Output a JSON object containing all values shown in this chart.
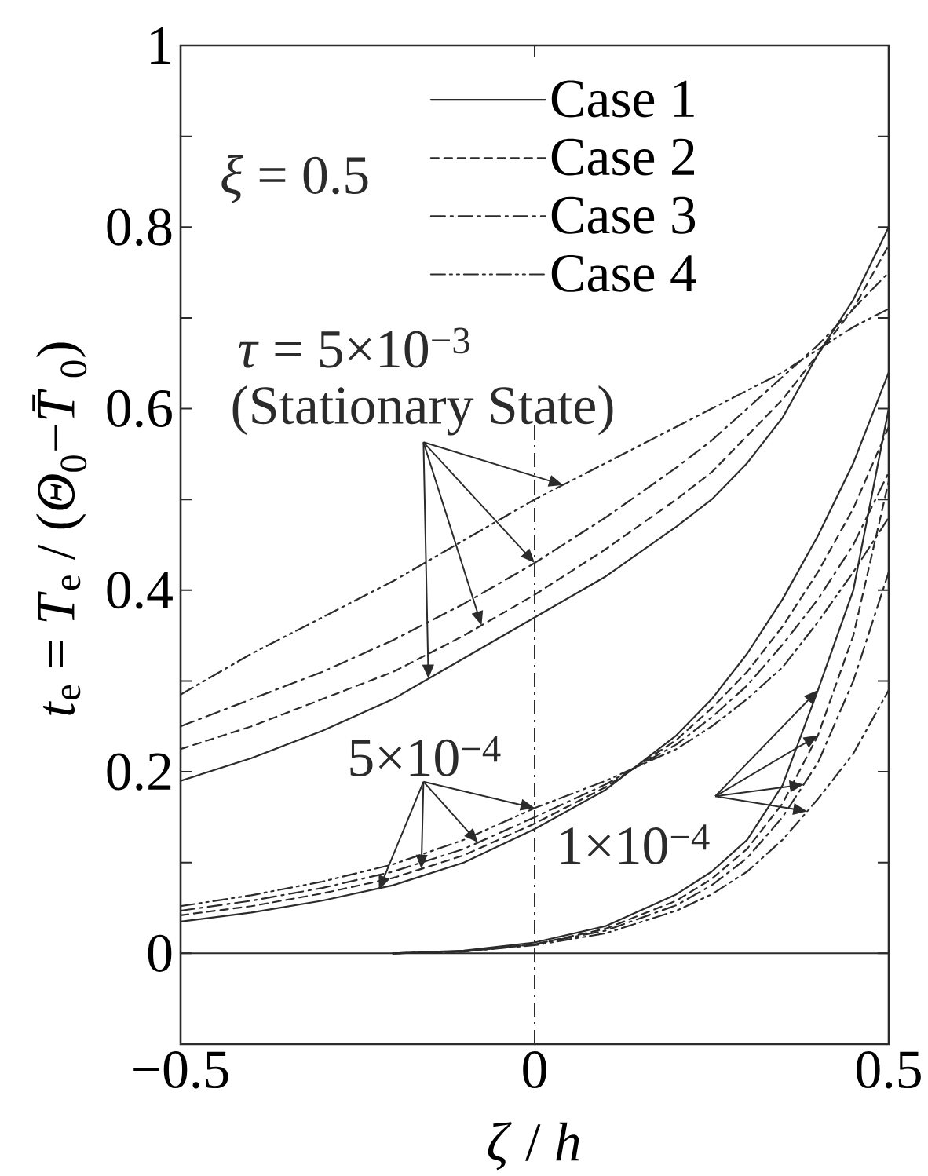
{
  "chart_data": {
    "type": "line",
    "xlabel": "*ζ* / *h*",
    "ylabel": "*t*$_{e}$ = *T*$_{e}$ / (*Θ*$_{0}$−*T̄*$_{0}$)",
    "x": [
      -0.5,
      -0.4,
      -0.3,
      -0.2,
      -0.1,
      0,
      0.1,
      0.2,
      0.25,
      0.3,
      0.35,
      0.4,
      0.45,
      0.5
    ],
    "series": [
      {
        "name": "Case 1",
        "color": "#2b2b2b",
        "line_style": "solid",
        "values": [
          0.19,
          0.215,
          0.245,
          0.28,
          0.325,
          0.37,
          0.415,
          0.47,
          0.5,
          0.54,
          0.59,
          0.66,
          0.72,
          0.8
        ]
      },
      {
        "name": "Case 2",
        "color": "#2b2b2b",
        "line_style": "dashed",
        "values": [
          0.225,
          0.25,
          0.28,
          0.31,
          0.35,
          0.395,
          0.445,
          0.5,
          0.53,
          0.57,
          0.61,
          0.66,
          0.71,
          0.78
        ]
      },
      {
        "name": "Case 3",
        "color": "#2b2b2b",
        "line_style": "dashdot",
        "values": [
          0.25,
          0.28,
          0.31,
          0.345,
          0.385,
          0.43,
          0.48,
          0.535,
          0.565,
          0.6,
          0.635,
          0.67,
          0.71,
          0.75
        ]
      },
      {
        "name": "Case 4",
        "color": "#2b2b2b",
        "line_style": "dashdotdot",
        "values": [
          0.285,
          0.33,
          0.37,
          0.41,
          0.455,
          0.5,
          0.54,
          0.58,
          0.6,
          0.62,
          0.64,
          0.665,
          0.69,
          0.71
        ]
      },
      {
        "color": "#2b2b2b",
        "line_style": "solid",
        "values": [
          0.035,
          0.045,
          0.058,
          0.075,
          0.1,
          0.137,
          0.18,
          0.24,
          0.28,
          0.33,
          0.39,
          0.46,
          0.54,
          0.64
        ]
      },
      {
        "color": "#2b2b2b",
        "line_style": "dashed",
        "values": [
          0.042,
          0.052,
          0.066,
          0.083,
          0.108,
          0.143,
          0.183,
          0.235,
          0.27,
          0.31,
          0.36,
          0.42,
          0.49,
          0.58
        ]
      },
      {
        "color": "#2b2b2b",
        "line_style": "dashdot",
        "values": [
          0.047,
          0.058,
          0.072,
          0.09,
          0.115,
          0.15,
          0.186,
          0.23,
          0.26,
          0.295,
          0.34,
          0.39,
          0.45,
          0.53
        ]
      },
      {
        "color": "#2b2b2b",
        "line_style": "dashdotdot",
        "values": [
          0.052,
          0.064,
          0.079,
          0.098,
          0.125,
          0.16,
          0.19,
          0.225,
          0.25,
          0.28,
          0.315,
          0.365,
          0.42,
          0.48
        ]
      },
      {
        "color": "#2b2b2b",
        "line_style": "solid",
        "x": [
          -0.2,
          -0.1,
          0,
          0.1,
          0.2,
          0.25,
          0.3,
          0.35,
          0.4,
          0.45,
          0.5
        ],
        "values": [
          0,
          0.003,
          0.012,
          0.03,
          0.065,
          0.09,
          0.125,
          0.185,
          0.29,
          0.4,
          0.6
        ]
      },
      {
        "color": "#2b2b2b",
        "line_style": "dashed",
        "x": [
          -0.2,
          -0.1,
          0,
          0.1,
          0.2,
          0.25,
          0.3,
          0.35,
          0.4,
          0.45,
          0.5
        ],
        "values": [
          0,
          0.002,
          0.01,
          0.027,
          0.058,
          0.082,
          0.115,
          0.165,
          0.24,
          0.35,
          0.52
        ]
      },
      {
        "color": "#2b2b2b",
        "line_style": "dashdot",
        "x": [
          -0.2,
          -0.1,
          0,
          0.1,
          0.2,
          0.25,
          0.3,
          0.35,
          0.4,
          0.45,
          0.5
        ],
        "values": [
          0,
          0.002,
          0.01,
          0.025,
          0.053,
          0.075,
          0.105,
          0.15,
          0.21,
          0.3,
          0.42
        ]
      },
      {
        "color": "#2b2b2b",
        "line_style": "dashdotdot",
        "x": [
          -0.2,
          -0.1,
          0,
          0.1,
          0.2,
          0.25,
          0.3,
          0.35,
          0.4,
          0.45,
          0.5
        ],
        "values": [
          0,
          0.002,
          0.009,
          0.022,
          0.047,
          0.065,
          0.09,
          0.125,
          0.17,
          0.22,
          0.29
        ]
      }
    ],
    "xlim": [
      -0.5,
      0.5
    ],
    "xticks": [
      {
        "value": -0.5,
        "label": "−0.5"
      },
      0,
      0.5
    ],
    "ylim": [
      -0.1,
      1
    ],
    "yticks": [
      0,
      {
        "value": 0.1,
        "label": null
      },
      0.2,
      {
        "value": 0.3,
        "label": null
      },
      0.4,
      {
        "value": 0.5,
        "label": null
      },
      0.6,
      {
        "value": 0.7,
        "label": null
      },
      0.8,
      {
        "value": 0.9,
        "label": null
      },
      1
    ],
    "ref_lines": [
      {
        "axis": "x",
        "value": 0,
        "color": "#2b2b2b",
        "line_style": "dashdot"
      }
    ],
    "annotations": [
      "*ξ* = 0.5",
      "*τ* = 5×10$^{−3}$",
      "(Stationary State)",
      {
        "text": "5×10$^{−4}$",
        "x": -0.22,
        "y": 0.07
      },
      "1×10$^{−4}$"
    ],
    "legend": "top"
  }
}
